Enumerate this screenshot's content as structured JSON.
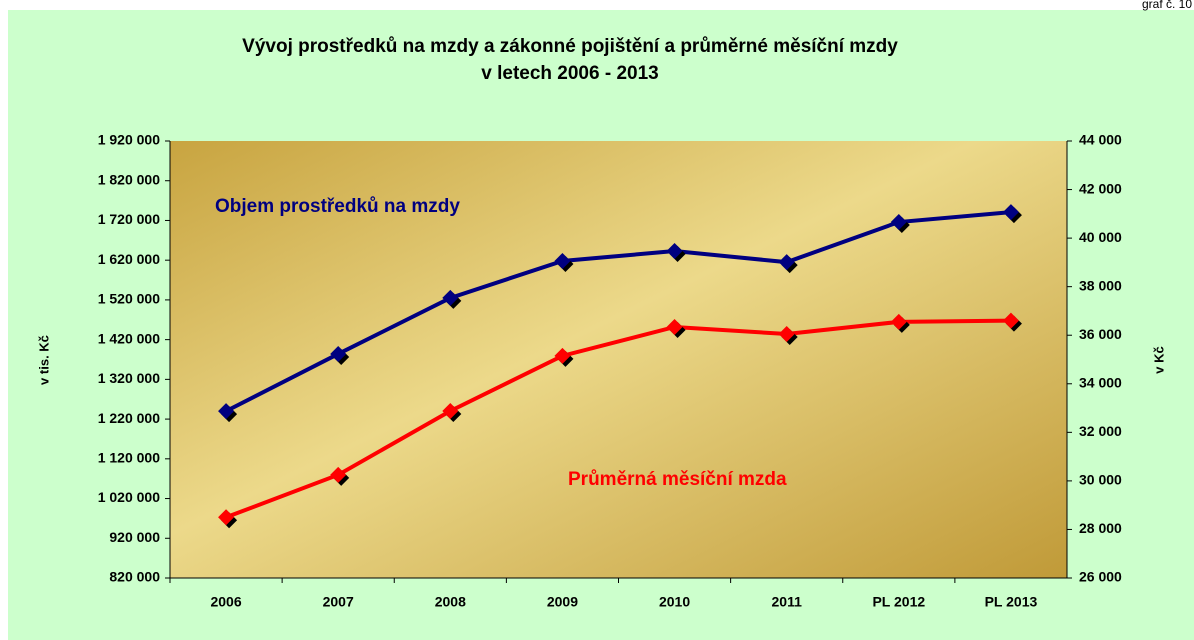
{
  "chart_data": {
    "type": "line",
    "corner_note": "graf č. 10",
    "title": "Vývoj prostředků na mzdy a zákonné pojištění a průměrné měsíční mzdy",
    "subtitle": "v letech 2006 - 2013",
    "ylabel": "v tis. Kč",
    "y2label": "v Kč",
    "categories": [
      "2006",
      "2007",
      "2008",
      "2009",
      "2010",
      "2011",
      "PL 2012",
      "PL 2013"
    ],
    "series": [
      {
        "name": "Objem prostředků na mzdy",
        "color": "#000080",
        "values": [
          1240000,
          1384000,
          1525000,
          1618000,
          1643000,
          1615000,
          1716000,
          1741000
        ]
      },
      {
        "name": "Průměrná měsíční mzda",
        "color": "#ff0000",
        "axis": "y2",
        "values": [
          28500,
          30250,
          32880,
          35150,
          36340,
          36050,
          36550,
          36600
        ]
      }
    ],
    "ylim": [
      820000,
      1920000
    ],
    "yticks": [
      {
        "value": 820000,
        "label": "820 000"
      },
      {
        "value": 920000,
        "label": "920 000"
      },
      {
        "value": 1020000,
        "label": "1 020 000"
      },
      {
        "value": 1120000,
        "label": "1 120 000"
      },
      {
        "value": 1220000,
        "label": "1 220 000"
      },
      {
        "value": 1320000,
        "label": "1 320 000"
      },
      {
        "value": 1420000,
        "label": "1 420 000"
      },
      {
        "value": 1520000,
        "label": "1 520 000"
      },
      {
        "value": 1620000,
        "label": "1 620 000"
      },
      {
        "value": 1720000,
        "label": "1 720 000"
      },
      {
        "value": 1820000,
        "label": "1 820 000"
      },
      {
        "value": 1920000,
        "label": "1 920 000"
      }
    ],
    "y2lim": [
      26000,
      44000
    ],
    "y2ticks": [
      {
        "value": 26000,
        "label": "26 000"
      },
      {
        "value": 28000,
        "label": "28 000"
      },
      {
        "value": 30000,
        "label": "30 000"
      },
      {
        "value": 32000,
        "label": "32 000"
      },
      {
        "value": 34000,
        "label": "34 000"
      },
      {
        "value": 36000,
        "label": "36 000"
      },
      {
        "value": 38000,
        "label": "38 000"
      },
      {
        "value": 40000,
        "label": "40 000"
      },
      {
        "value": 42000,
        "label": "42 000"
      },
      {
        "value": 44000,
        "label": "44 000"
      }
    ]
  }
}
